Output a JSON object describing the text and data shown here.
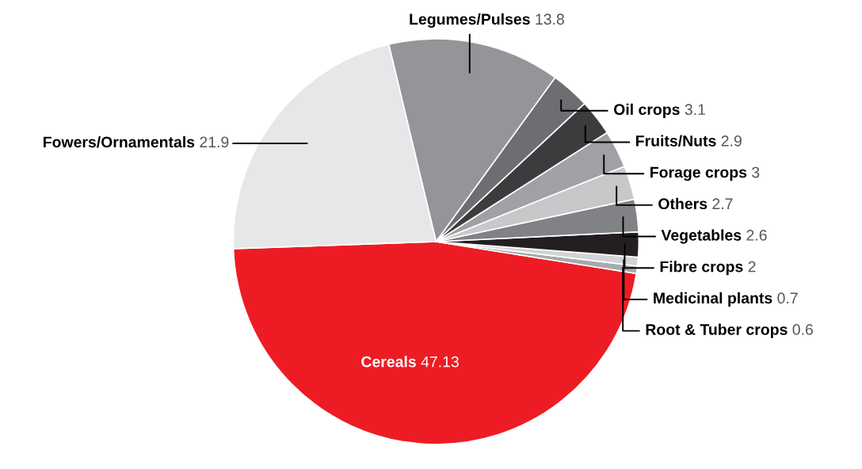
{
  "chart_data": {
    "type": "pie",
    "categories": [
      "Cereals",
      "Root & Tuber crops",
      "Medicinal plants",
      "Fibre crops",
      "Vegetables",
      "Others",
      "Forage crops",
      "Fruits/Nuts",
      "Oil crops",
      "Legumes/Pulses",
      "Fowers/Ornamentals"
    ],
    "values": [
      47.13,
      0.6,
      0.7,
      2,
      2.6,
      2.7,
      3,
      2.9,
      3.1,
      13.8,
      21.9
    ],
    "value_labels": [
      "47.13",
      "0.6",
      "0.7",
      "2",
      "2.6",
      "2.7",
      "3",
      "2.9",
      "3.1",
      "13.8",
      "21.9"
    ],
    "colors": [
      "#ed1c24",
      "#a7a9ac",
      "#d1d3d4",
      "#231f20",
      "#808285",
      "#c7c8ca",
      "#a0a1a4",
      "#3c3c3e",
      "#6d6e71",
      "#939598",
      "#e6e7e8"
    ]
  }
}
